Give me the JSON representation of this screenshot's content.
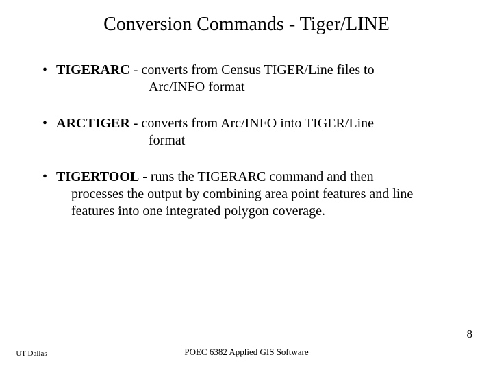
{
  "title": "Conversion Commands - Tiger/LINE",
  "items": [
    {
      "cmd": "TIGERARC",
      "sep": " -   ",
      "line1": "converts from Census TIGER/Line files to",
      "line2": "Arc/INFO format",
      "hanging": true
    },
    {
      "cmd": "ARCTIGER",
      "sep": " -   ",
      "line1": "converts from Arc/INFO into TIGER/Line",
      "line2": "format",
      "hanging": true
    },
    {
      "cmd": "TIGERTOOL",
      "sep": " -  ",
      "line1": "runs the TIGERARC command and then",
      "rest": "processes the output by combining area point features and line features into one integrated polygon coverage.",
      "hanging": false
    }
  ],
  "footer": {
    "left": "--UT Dallas",
    "center": "POEC 6382  Applied GIS Software",
    "page": "8"
  },
  "style": {
    "background": "#ffffff",
    "text_color": "#000000",
    "title_fontsize": 28,
    "body_fontsize": 20,
    "footer_fontsize": 12
  }
}
